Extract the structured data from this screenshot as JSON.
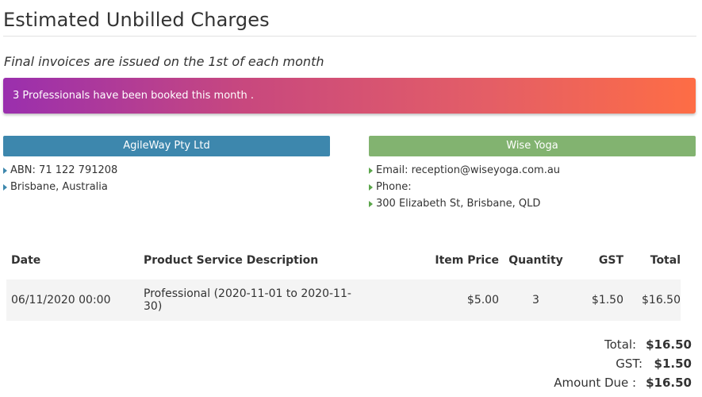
{
  "page": {
    "title": "Estimated Unbilled Charges",
    "subtitle": "Final invoices are issued on the 1st of each month"
  },
  "banner": {
    "text": "3 Professionals have been booked this month .",
    "colors": [
      "#9a2fae",
      "#c8487e",
      "#e45e66",
      "#fe6d45"
    ]
  },
  "company": {
    "name": "AgileWay Pty Ltd",
    "color": "#3d87ad",
    "details": [
      "ABN: 71 122 791208",
      "Brisbane, Australia"
    ]
  },
  "client": {
    "name": "Wise Yoga",
    "color": "#82b370",
    "details": [
      "Email: reception@wiseyoga.com.au",
      "Phone:",
      "300 Elizabeth St, Brisbane, QLD"
    ]
  },
  "table": {
    "headers": {
      "date": "Date",
      "description": "Product Service Description",
      "item_price": "Item Price",
      "quantity": "Quantity",
      "gst": "GST",
      "total": "Total"
    },
    "rows": [
      {
        "date": "06/11/2020 00:00",
        "description": "Professional (2020-11-01 to 2020-11-30)",
        "item_price": "$5.00",
        "quantity": "3",
        "gst": "$1.50",
        "total": "$16.50"
      }
    ]
  },
  "summary": {
    "total_label": "Total:",
    "total_value": "$16.50",
    "gst_label": "GST:",
    "gst_value": "$1.50",
    "amount_due_label": "Amount Due :",
    "amount_due_value": "$16.50"
  }
}
